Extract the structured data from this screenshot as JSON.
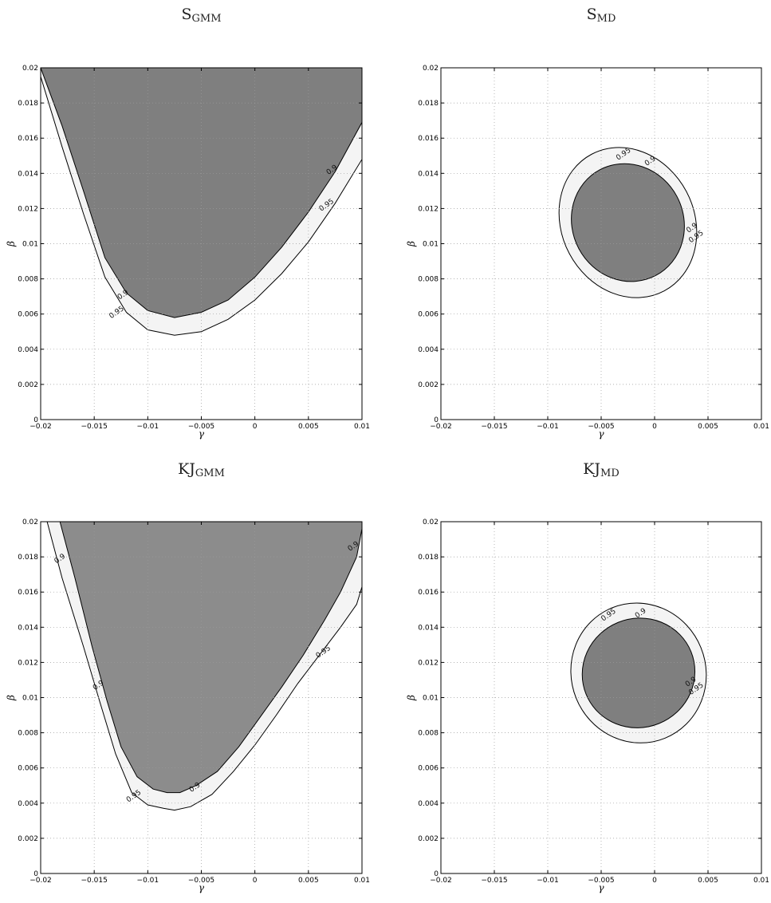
{
  "chart_data": [
    {
      "type": "contour",
      "title": "SGMM",
      "title_main": "S",
      "title_sub": "GMM",
      "xlabel": "γ",
      "ylabel": "β",
      "xlim": [
        -0.02,
        0.01
      ],
      "ylim": [
        0,
        0.02
      ],
      "xticks": [
        "-0.02",
        "-0.015",
        "-0.01",
        "-0.005",
        "0",
        "0.005",
        "0.01"
      ],
      "yticks": [
        "0",
        "0.002",
        "0.004",
        "0.006",
        "0.008",
        "0.01",
        "0.012",
        "0.014",
        "0.016",
        "0.018",
        "0.02"
      ],
      "grid": true,
      "regions": [
        {
          "level": "0.95",
          "fill": "#f4f4f4",
          "points": [
            [
              -0.02,
              0.0195
            ],
            [
              -0.018,
              0.0155
            ],
            [
              -0.016,
              0.0117
            ],
            [
              -0.014,
              0.0081
            ],
            [
              -0.012,
              0.0061
            ],
            [
              -0.01,
              0.0051
            ],
            [
              -0.0075,
              0.0048
            ],
            [
              -0.005,
              0.005
            ],
            [
              -0.0025,
              0.0057
            ],
            [
              0,
              0.0068
            ],
            [
              0.0025,
              0.0083
            ],
            [
              0.005,
              0.0101
            ],
            [
              0.0075,
              0.0123
            ],
            [
              0.01,
              0.0148
            ],
            [
              0.01,
              0.02
            ],
            [
              -0.02,
              0.02
            ]
          ]
        },
        {
          "level": "0.9",
          "fill": "#7f7f7f",
          "points": [
            [
              -0.02,
              0.02
            ],
            [
              -0.018,
              0.0167
            ],
            [
              -0.016,
              0.013
            ],
            [
              -0.014,
              0.0092
            ],
            [
              -0.012,
              0.0072
            ],
            [
              -0.01,
              0.0062
            ],
            [
              -0.0075,
              0.0058
            ],
            [
              -0.005,
              0.0061
            ],
            [
              -0.0025,
              0.0068
            ],
            [
              0,
              0.0081
            ],
            [
              0.0025,
              0.0098
            ],
            [
              0.005,
              0.0118
            ],
            [
              0.0075,
              0.0141
            ],
            [
              0.01,
              0.0169
            ],
            [
              0.01,
              0.02
            ]
          ]
        }
      ],
      "labels": [
        {
          "text": "0.9",
          "x": 0.0073,
          "y": 0.0141
        },
        {
          "text": "0.95",
          "x": 0.0068,
          "y": 0.0121
        },
        {
          "text": "0.9",
          "x": -0.0122,
          "y": 0.007
        },
        {
          "text": "0.95",
          "x": -0.0128,
          "y": 0.006
        }
      ]
    },
    {
      "type": "contour",
      "title": "SMD",
      "title_main": "S",
      "title_sub": "MD",
      "xlabel": "γ",
      "ylabel": "β",
      "xlim": [
        -0.02,
        0.01
      ],
      "ylim": [
        0,
        0.02
      ],
      "xticks": [
        "-0.02",
        "-0.015",
        "-0.01",
        "-0.005",
        "0",
        "0.005",
        "0.01"
      ],
      "yticks": [
        "0",
        "0.002",
        "0.004",
        "0.006",
        "0.008",
        "0.01",
        "0.012",
        "0.014",
        "0.016",
        "0.018",
        "0.02"
      ],
      "grid": true,
      "regions": [
        {
          "level": "0.95",
          "fill": "#f4f4f4",
          "ellipse": {
            "cx": -0.0025,
            "cy": 0.0112,
            "rx": 0.0062,
            "ry": 0.0044,
            "angle": 28
          }
        },
        {
          "level": "0.9",
          "fill": "#7f7f7f",
          "ellipse": {
            "cx": -0.0025,
            "cy": 0.0112,
            "rx": 0.0052,
            "ry": 0.0034,
            "angle": 28
          }
        }
      ],
      "labels": [
        {
          "text": "0.95",
          "x": -0.0028,
          "y": 0.015
        },
        {
          "text": "0.9",
          "x": -0.0003,
          "y": 0.0146
        },
        {
          "text": "0.9",
          "x": 0.0036,
          "y": 0.0108
        },
        {
          "text": "0.95",
          "x": 0.004,
          "y": 0.0103
        }
      ]
    },
    {
      "type": "contour",
      "title": "KJGMM",
      "title_main": "KJ",
      "title_sub": "GMM",
      "xlabel": "γ",
      "ylabel": "β",
      "xlim": [
        -0.02,
        0.01
      ],
      "ylim": [
        0,
        0.02
      ],
      "xticks": [
        "-0.02",
        "-0.015",
        "-0.01",
        "-0.005",
        "0",
        "0.005",
        "0.01"
      ],
      "yticks": [
        "0",
        "0.002",
        "0.004",
        "0.006",
        "0.008",
        "0.01",
        "0.012",
        "0.014",
        "0.016",
        "0.018",
        "0.02"
      ],
      "grid": true,
      "regions": [
        {
          "level": "0.95",
          "fill": "#f4f4f4",
          "points": [
            [
              -0.0194,
              0.02
            ],
            [
              -0.018,
              0.0168
            ],
            [
              -0.016,
              0.0129
            ],
            [
              -0.0145,
              0.0098
            ],
            [
              -0.013,
              0.0068
            ],
            [
              -0.0115,
              0.0046
            ],
            [
              -0.01,
              0.0039
            ],
            [
              -0.0085,
              0.0037
            ],
            [
              -0.0075,
              0.0036
            ],
            [
              -0.006,
              0.0038
            ],
            [
              -0.004,
              0.0045
            ],
            [
              -0.002,
              0.0058
            ],
            [
              0,
              0.0073
            ],
            [
              0.002,
              0.009
            ],
            [
              0.004,
              0.0108
            ],
            [
              0.006,
              0.0124
            ],
            [
              0.008,
              0.014
            ],
            [
              0.0095,
              0.0153
            ],
            [
              0.01,
              0.0163
            ],
            [
              0.01,
              0.02
            ]
          ]
        },
        {
          "level": "0.9",
          "fill": "#8c8c8c",
          "points": [
            [
              -0.0182,
              0.02
            ],
            [
              -0.0168,
              0.0168
            ],
            [
              -0.0152,
              0.0129
            ],
            [
              -0.0138,
              0.0098
            ],
            [
              -0.0125,
              0.0072
            ],
            [
              -0.011,
              0.0055
            ],
            [
              -0.0095,
              0.0048
            ],
            [
              -0.0082,
              0.0046
            ],
            [
              -0.007,
              0.0046
            ],
            [
              -0.0055,
              0.005
            ],
            [
              -0.0035,
              0.0058
            ],
            [
              -0.0015,
              0.0072
            ],
            [
              0.0005,
              0.0089
            ],
            [
              0.0025,
              0.0106
            ],
            [
              0.0045,
              0.0124
            ],
            [
              0.0065,
              0.0144
            ],
            [
              0.008,
              0.016
            ],
            [
              0.0095,
              0.018
            ],
            [
              0.01,
              0.0196
            ],
            [
              0.01,
              0.02
            ]
          ]
        }
      ],
      "labels": [
        {
          "text": "0.9",
          "x": -0.0181,
          "y": 0.0178
        },
        {
          "text": "0.9",
          "x": -0.0145,
          "y": 0.0106
        },
        {
          "text": "0.95",
          "x": -0.0112,
          "y": 0.0043
        },
        {
          "text": "0.9",
          "x": -0.0055,
          "y": 0.0048
        },
        {
          "text": "0.95",
          "x": 0.0065,
          "y": 0.0125
        },
        {
          "text": "0.9",
          "x": 0.0093,
          "y": 0.0185
        }
      ]
    },
    {
      "type": "contour",
      "title": "KJMD",
      "title_main": "KJ",
      "title_sub": "MD",
      "xlabel": "γ",
      "ylabel": "β",
      "xlim": [
        -0.02,
        0.01
      ],
      "ylim": [
        0,
        0.02
      ],
      "xticks": [
        "-0.02",
        "-0.015",
        "-0.01",
        "-0.005",
        "0",
        "0.005",
        "0.01"
      ],
      "yticks": [
        "0",
        "0.002",
        "0.004",
        "0.006",
        "0.008",
        "0.01",
        "0.012",
        "0.014",
        "0.016",
        "0.018",
        "0.02"
      ],
      "grid": true,
      "regions": [
        {
          "level": "0.95",
          "fill": "#f4f4f4",
          "ellipse": {
            "cx": -0.0015,
            "cy": 0.0114,
            "rx": 0.0063,
            "ry": 0.004,
            "angle": 22
          }
        },
        {
          "level": "0.9",
          "fill": "#7f7f7f",
          "ellipse": {
            "cx": -0.0015,
            "cy": 0.0114,
            "rx": 0.0053,
            "ry": 0.0031,
            "angle": 22
          }
        }
      ],
      "labels": [
        {
          "text": "0.95",
          "x": -0.0042,
          "y": 0.0146
        },
        {
          "text": "0.9",
          "x": -0.0012,
          "y": 0.0147
        },
        {
          "text": "0.9",
          "x": 0.0035,
          "y": 0.0108
        },
        {
          "text": "0.95",
          "x": 0.004,
          "y": 0.0104
        }
      ]
    }
  ]
}
